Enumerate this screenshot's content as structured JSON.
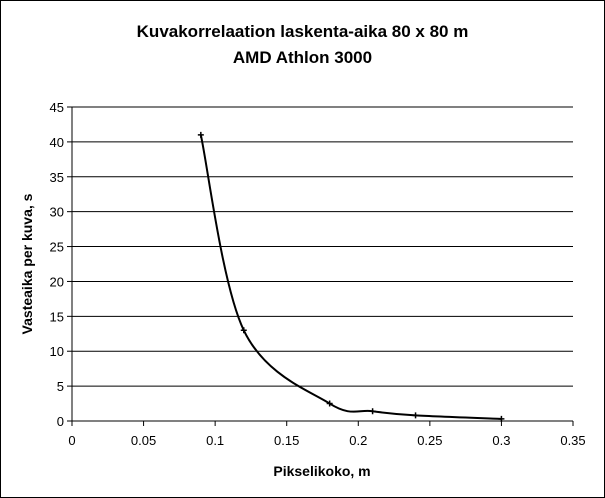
{
  "chart_data": {
    "type": "line",
    "title": "Kuvakorrelaation laskenta-aika 80 x 80 m",
    "subtitle": "AMD Athlon 3000",
    "xlabel": "Pikselikoko, m",
    "ylabel": "Vasteaika per kuva, s",
    "xlim": [
      0,
      0.35
    ],
    "ylim": [
      0,
      45
    ],
    "xticks": [
      "0",
      "0.05",
      "0.1",
      "0.15",
      "0.2",
      "0.25",
      "0.3",
      "0.35"
    ],
    "yticks": [
      "0",
      "5",
      "10",
      "15",
      "20",
      "25",
      "30",
      "35",
      "40",
      "45"
    ],
    "grid": "horizontal major gridlines",
    "legend": "none",
    "smoothed": true,
    "series": [
      {
        "x": [
          0.09,
          0.12,
          0.18,
          0.21,
          0.24,
          0.3
        ],
        "y": [
          41.0,
          13.0,
          2.5,
          1.4,
          0.8,
          0.3
        ],
        "color": "#000000"
      }
    ]
  }
}
